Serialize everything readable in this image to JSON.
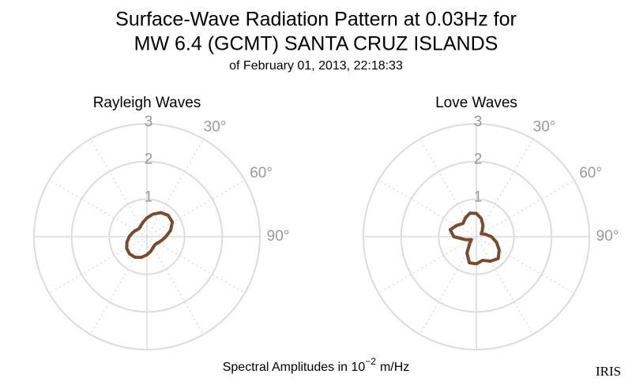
{
  "page": {
    "title_lines": [
      "Surface-Wave Radiation Pattern at 0.03Hz for",
      "MW 6.4 (GCMT) SANTA CRUZ ISLANDS"
    ],
    "subtitle": "of February 01, 2013, 22:18:33",
    "footer": {
      "text": "Spectral Amplitudes in 10",
      "exponent": "−2",
      "unit": "m/Hz"
    },
    "logo": "IRIS"
  },
  "chart_data": [
    {
      "type": "polar",
      "title": "Rayleigh Waves",
      "color": "#7b4a2c",
      "rlim": [
        0,
        3
      ],
      "rticks": [
        1,
        2,
        3
      ],
      "angle_ticks": [
        {
          "value": 30,
          "label": "30°"
        },
        {
          "value": 60,
          "label": "60°"
        },
        {
          "value": 90,
          "label": "90°"
        }
      ],
      "theta": [
        0,
        15,
        30,
        45,
        60,
        75,
        90,
        105,
        120,
        135,
        150,
        165,
        180,
        195,
        210,
        225,
        240,
        255,
        270,
        285,
        300,
        315,
        330,
        345
      ],
      "values": [
        0.5,
        0.62,
        0.74,
        0.8,
        0.78,
        0.65,
        0.5,
        0.4,
        0.33,
        0.3,
        0.33,
        0.4,
        0.48,
        0.57,
        0.63,
        0.65,
        0.62,
        0.55,
        0.47,
        0.4,
        0.34,
        0.3,
        0.33,
        0.4
      ]
    },
    {
      "type": "polar",
      "title": "Love Waves",
      "color": "#7b4a2c",
      "rlim": [
        0,
        3
      ],
      "rticks": [
        1,
        2,
        3
      ],
      "angle_ticks": [
        {
          "value": 30,
          "label": "30°"
        },
        {
          "value": 60,
          "label": "60°"
        },
        {
          "value": 90,
          "label": "90°"
        }
      ],
      "theta": [
        0,
        15,
        30,
        45,
        60,
        75,
        90,
        105,
        120,
        135,
        150,
        165,
        180,
        195,
        210,
        225,
        240,
        255,
        270,
        285,
        300,
        315,
        330,
        345
      ],
      "values": [
        0.62,
        0.5,
        0.35,
        0.22,
        0.15,
        0.25,
        0.4,
        0.55,
        0.7,
        0.82,
        0.75,
        0.65,
        0.72,
        0.72,
        0.5,
        0.25,
        0.15,
        0.3,
        0.6,
        0.72,
        0.6,
        0.5,
        0.58,
        0.65
      ]
    }
  ]
}
